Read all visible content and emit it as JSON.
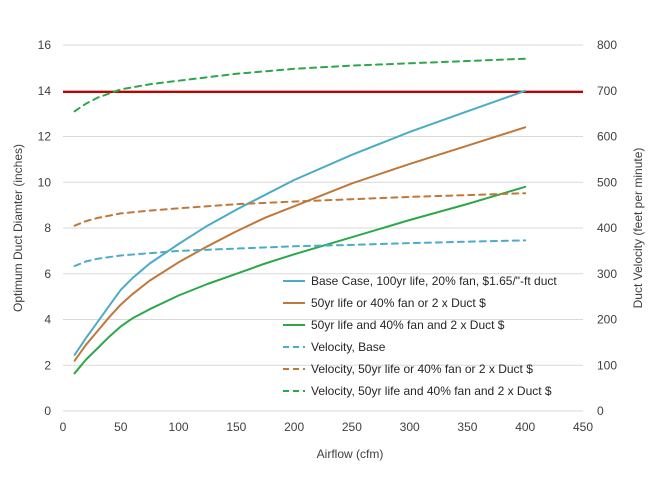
{
  "chart_data": {
    "type": "line",
    "title": "",
    "xlabel": "Airflow (cfm)",
    "ylabel_left": "Optimum Duct Diamter (inches)",
    "ylabel_right": "Duct Velocity (feet per minute)",
    "xlim": [
      0,
      450
    ],
    "ylim_left": [
      0,
      16
    ],
    "ylim_right": [
      0,
      800
    ],
    "x_ticks": [
      "0",
      "50",
      "100",
      "150",
      "200",
      "250",
      "300",
      "350",
      "400",
      "450"
    ],
    "y_left_ticks": [
      "0",
      "2",
      "4",
      "6",
      "8",
      "10",
      "12",
      "14",
      "16"
    ],
    "y_right_ticks": [
      "0",
      "100",
      "200",
      "300",
      "400",
      "500",
      "600",
      "700",
      "800"
    ],
    "grid": "horizontal",
    "legend_position": "lower-right",
    "reference_line": {
      "axis": "left",
      "y": 13.95,
      "color": "#c00000"
    },
    "series": [
      {
        "name": "Base Case, 100yr life, 20% fan, $1.65/\"-ft duct",
        "axis": "left",
        "color": "#4bacc6",
        "dash": "solid",
        "x": [
          10,
          20,
          30,
          40,
          50,
          60,
          75,
          100,
          125,
          150,
          175,
          200,
          250,
          300,
          350,
          400
        ],
        "y": [
          2.45,
          3.2,
          3.9,
          4.6,
          5.3,
          5.8,
          6.45,
          7.3,
          8.1,
          8.8,
          9.45,
          10.1,
          11.2,
          12.2,
          13.1,
          14.0
        ]
      },
      {
        "name": "50yr life or 40% fan or 2 x Duct $",
        "axis": "left",
        "color": "#c0783a",
        "dash": "solid",
        "x": [
          10,
          20,
          30,
          40,
          50,
          60,
          75,
          100,
          125,
          150,
          175,
          200,
          250,
          300,
          350,
          400
        ],
        "y": [
          2.2,
          2.9,
          3.5,
          4.1,
          4.65,
          5.1,
          5.7,
          6.5,
          7.2,
          7.85,
          8.45,
          8.95,
          9.95,
          10.8,
          11.6,
          12.4
        ]
      },
      {
        "name": "50yr life and 40% fan and 2 x Duct $",
        "axis": "left",
        "color": "#2ca84a",
        "dash": "solid",
        "x": [
          10,
          20,
          30,
          40,
          50,
          60,
          75,
          100,
          125,
          150,
          175,
          200,
          250,
          300,
          350,
          400
        ],
        "y": [
          1.65,
          2.25,
          2.75,
          3.25,
          3.7,
          4.05,
          4.45,
          5.05,
          5.55,
          6.0,
          6.45,
          6.85,
          7.6,
          8.35,
          9.05,
          9.8
        ]
      },
      {
        "name": "Velocity, Base",
        "axis": "right",
        "color": "#4bacc6",
        "dash": "dashed",
        "x": [
          10,
          20,
          30,
          50,
          75,
          100,
          150,
          200,
          250,
          300,
          350,
          400
        ],
        "y": [
          317,
          327,
          333,
          340,
          345,
          350,
          355,
          360,
          363,
          367,
          370,
          373
        ]
      },
      {
        "name": "Velocity, 50yr life or 40% fan or 2 x Duct $",
        "axis": "right",
        "color": "#c0783a",
        "dash": "dashed",
        "x": [
          10,
          20,
          30,
          50,
          75,
          100,
          150,
          200,
          250,
          300,
          350,
          400
        ],
        "y": [
          405,
          415,
          422,
          432,
          438,
          443,
          452,
          458,
          463,
          468,
          472,
          476
        ]
      },
      {
        "name": "Velocity, 50yr life and 40% fan and 2 x Duct $",
        "axis": "right",
        "color": "#2ca84a",
        "dash": "dashed",
        "x": [
          10,
          20,
          30,
          50,
          75,
          100,
          150,
          200,
          250,
          300,
          350,
          400
        ],
        "y": [
          655,
          672,
          685,
          703,
          714,
          722,
          737,
          748,
          755,
          760,
          765,
          770
        ]
      }
    ]
  }
}
